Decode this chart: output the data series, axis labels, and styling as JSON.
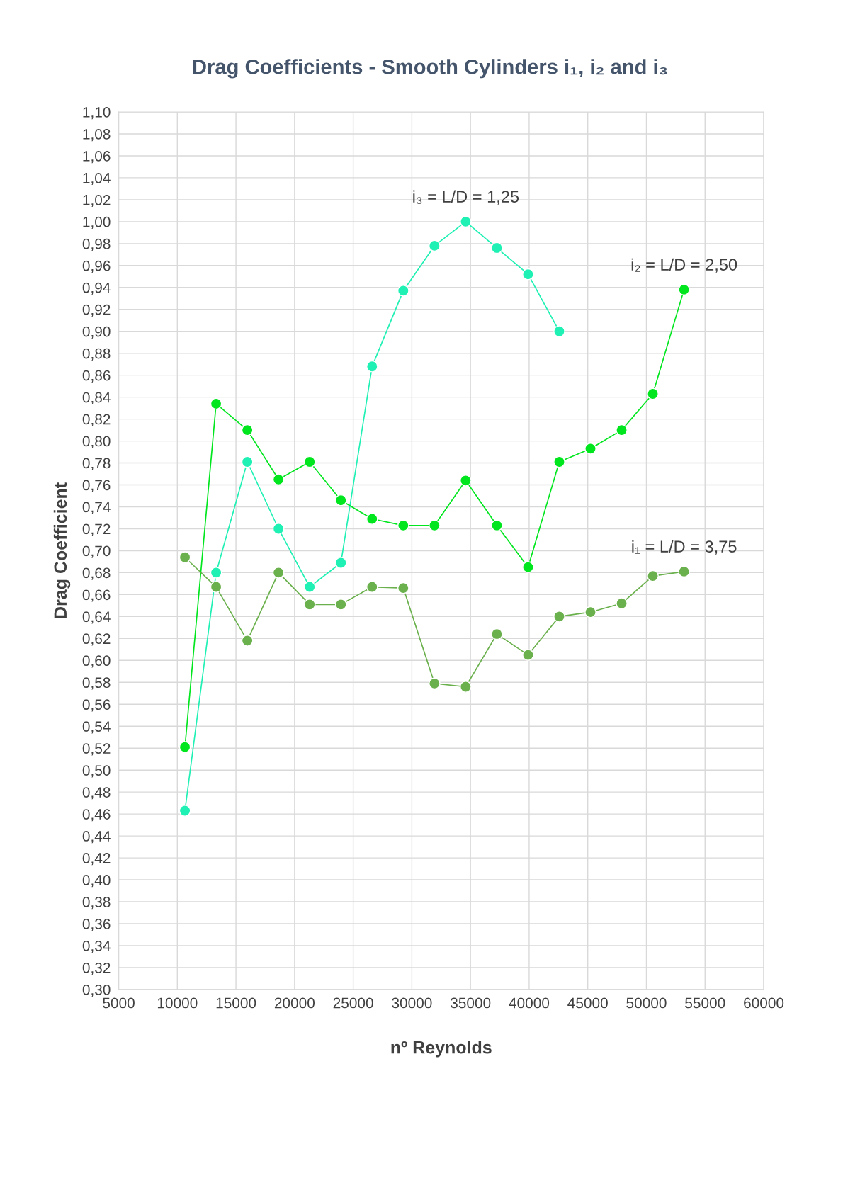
{
  "chart_data": {
    "type": "line",
    "title": "Drag Coefficients - Smooth Cylinders i₁, i₂ and i₃",
    "xlabel": "nº Reynolds",
    "ylabel": "Drag Coefficient",
    "x": [
      10650,
      13310,
      15970,
      18630,
      21290,
      23950,
      26610,
      29270,
      31930,
      34590,
      37250,
      39910,
      42570,
      45230,
      47890,
      50550,
      53210
    ],
    "series": [
      {
        "name": "i₃ = L/D = 1,25",
        "color": "#1ff0b4",
        "values": [
          0.463,
          0.68,
          0.781,
          0.72,
          0.667,
          0.689,
          0.868,
          0.937,
          0.978,
          1.0,
          0.976,
          0.952,
          0.9,
          null,
          null,
          null,
          null
        ]
      },
      {
        "name": "i₂ = L/D = 2,50",
        "color": "#00e61e",
        "values": [
          0.521,
          0.834,
          0.81,
          0.765,
          0.781,
          0.746,
          0.729,
          0.723,
          0.723,
          0.764,
          0.723,
          0.685,
          0.781,
          0.793,
          0.81,
          0.843,
          0.938
        ]
      },
      {
        "name": "i₁ = L/D = 3,75",
        "color": "#6ab04c",
        "values": [
          0.694,
          0.667,
          0.618,
          0.68,
          0.651,
          0.651,
          0.667,
          0.666,
          0.579,
          0.576,
          0.624,
          0.605,
          0.64,
          0.644,
          0.652,
          0.677,
          0.681
        ]
      }
    ],
    "xlim": [
      5000,
      60000
    ],
    "xticks": [
      5000,
      10000,
      15000,
      20000,
      25000,
      30000,
      35000,
      40000,
      45000,
      50000,
      55000,
      60000
    ],
    "ylim": [
      0.3,
      1.1
    ],
    "yticks": [
      {
        "value": 0.3,
        "label": "0,30"
      },
      {
        "value": 0.32,
        "label": "0,32"
      },
      {
        "value": 0.34,
        "label": "0,34"
      },
      {
        "value": 0.36,
        "label": "0,36"
      },
      {
        "value": 0.38,
        "label": "0,38"
      },
      {
        "value": 0.4,
        "label": "0,40"
      },
      {
        "value": 0.42,
        "label": "0,42"
      },
      {
        "value": 0.44,
        "label": "0,44"
      },
      {
        "value": 0.46,
        "label": "0,46"
      },
      {
        "value": 0.48,
        "label": "0,48"
      },
      {
        "value": 0.5,
        "label": "0,50"
      },
      {
        "value": 0.52,
        "label": "0,52"
      },
      {
        "value": 0.54,
        "label": "0,54"
      },
      {
        "value": 0.56,
        "label": "0,56"
      },
      {
        "value": 0.58,
        "label": "0,58"
      },
      {
        "value": 0.6,
        "label": "0,60"
      },
      {
        "value": 0.62,
        "label": "0,62"
      },
      {
        "value": 0.64,
        "label": "0,64"
      },
      {
        "value": 0.66,
        "label": "0,66"
      },
      {
        "value": 0.68,
        "label": "0,68"
      },
      {
        "value": 0.7,
        "label": "0,70"
      },
      {
        "value": 0.72,
        "label": "0,72"
      },
      {
        "value": 0.74,
        "label": "0,74"
      },
      {
        "value": 0.76,
        "label": "0,76"
      },
      {
        "value": 0.78,
        "label": "0,78"
      },
      {
        "value": 0.8,
        "label": "0,80"
      },
      {
        "value": 0.82,
        "label": "0,82"
      },
      {
        "value": 0.84,
        "label": "0,84"
      },
      {
        "value": 0.86,
        "label": "0,86"
      },
      {
        "value": 0.88,
        "label": "0,88"
      },
      {
        "value": 0.9,
        "label": "0,90"
      },
      {
        "value": 0.92,
        "label": "0,92"
      },
      {
        "value": 0.94,
        "label": "0,94"
      },
      {
        "value": 0.96,
        "label": "0,96"
      },
      {
        "value": 0.98,
        "label": "0,98"
      },
      {
        "value": 1.0,
        "label": "1,00"
      },
      {
        "value": 1.02,
        "label": "1,02"
      },
      {
        "value": 1.04,
        "label": "1,04"
      },
      {
        "value": 1.06,
        "label": "1,06"
      },
      {
        "value": 1.08,
        "label": "1,08"
      },
      {
        "value": 1.1,
        "label": "1,10"
      }
    ],
    "grid": true,
    "legend": false,
    "marker": "circle",
    "line_style": "solid"
  }
}
